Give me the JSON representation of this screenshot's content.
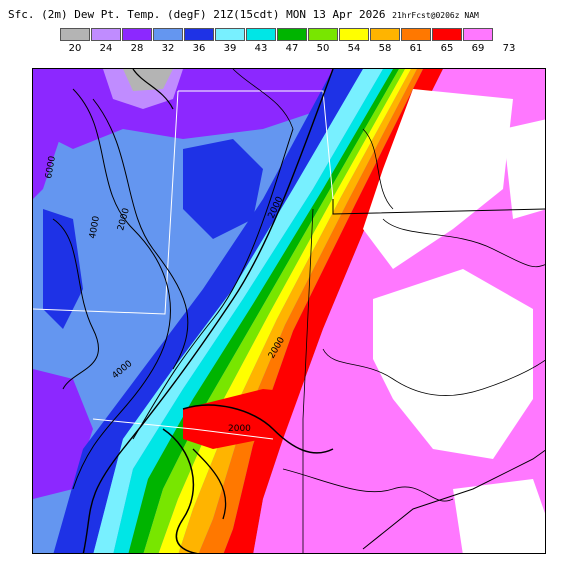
{
  "header": {
    "title_main": "Sfc. (2m) Dew Pt. Temp. (degF) 21Z(15cdt) MON 13 Apr 2026",
    "title_right": "21hrFcst@0206z NAM"
  },
  "legend": {
    "labels": [
      "20",
      "24",
      "28",
      "32",
      "36",
      "39",
      "43",
      "47",
      "50",
      "54",
      "58",
      "61",
      "65",
      "69",
      "73"
    ],
    "colors": [
      "#b4b4b4",
      "#c08cff",
      "#8c28ff",
      "#6496f0",
      "#1e32e6",
      "#78f0ff",
      "#00e6e6",
      "#00b400",
      "#78e600",
      "#ffff00",
      "#ffb400",
      "#ff7800",
      "#ff0000",
      "#ff78ff",
      "#ffffff"
    ]
  },
  "map": {
    "contour_labels": [
      "6000",
      "4000",
      "2000",
      "2000",
      "2000",
      "4000",
      "2000"
    ]
  }
}
